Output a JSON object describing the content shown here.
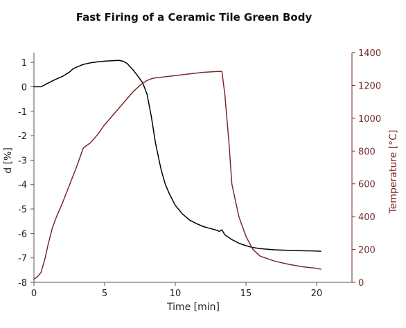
{
  "chart_data": {
    "type": "line",
    "title": "Fast Firing of a Ceramic Tile Green Body",
    "xlabel": "Time [min]",
    "ylabel_left": "d [%]",
    "ylabel_right": "Temperature [°C]",
    "xlim": [
      0,
      22.5
    ],
    "ylim_left": [
      -8,
      1.4
    ],
    "ylim_right": [
      0,
      1400
    ],
    "x_ticks": [
      "0",
      "5",
      "10",
      "15",
      "20"
    ],
    "y_left_ticks": [
      "1",
      "0",
      "-1",
      "-2",
      "-3",
      "-4",
      "-5",
      "-6",
      "-7",
      "-8"
    ],
    "y_right_ticks": [
      "1400",
      "1200",
      "1000",
      "800",
      "600",
      "400",
      "200",
      "0"
    ],
    "grid": false,
    "colors": {
      "left": "#000000",
      "right": "#7a2a2a"
    },
    "series": [
      {
        "axis": "left",
        "x": [
          0,
          0.5,
          1,
          1.5,
          2,
          2.5,
          2.8,
          3.2,
          3.5,
          4,
          4.5,
          5,
          5.5,
          6,
          6.3,
          6.6,
          7,
          7.4,
          7.7,
          8,
          8.3,
          8.6,
          9,
          9.3,
          9.6,
          10,
          10.5,
          11,
          11.5,
          12,
          12.5,
          13,
          13.1,
          13.3,
          13.5,
          14,
          14.5,
          15,
          15.5,
          16,
          17,
          18,
          19,
          20,
          20.3
        ],
        "values": [
          0,
          0,
          0.15,
          0.3,
          0.42,
          0.6,
          0.75,
          0.85,
          0.92,
          0.98,
          1.02,
          1.05,
          1.07,
          1.08,
          1.05,
          0.95,
          0.7,
          0.4,
          0.15,
          -0.3,
          -1.2,
          -2.3,
          -3.4,
          -4.0,
          -4.4,
          -4.85,
          -5.2,
          -5.45,
          -5.6,
          -5.72,
          -5.8,
          -5.88,
          -5.92,
          -5.85,
          -6.05,
          -6.25,
          -6.4,
          -6.5,
          -6.58,
          -6.62,
          -6.67,
          -6.69,
          -6.71,
          -6.72,
          -6.73
        ]
      },
      {
        "axis": "right",
        "x": [
          0,
          0.2,
          0.5,
          0.8,
          1,
          1.3,
          1.6,
          2,
          2.5,
          3,
          3.5,
          4,
          4.5,
          5,
          5.5,
          6,
          6.5,
          7,
          7.5,
          8,
          8.3,
          8.5,
          9,
          10,
          11,
          12,
          13,
          13.3,
          13.5,
          13.8,
          14,
          14.5,
          15,
          15.5,
          16,
          17,
          18,
          19,
          20,
          20.3
        ],
        "values": [
          20,
          30,
          60,
          150,
          230,
          330,
          400,
          480,
          590,
          700,
          820,
          850,
          900,
          960,
          1010,
          1060,
          1110,
          1160,
          1200,
          1230,
          1240,
          1245,
          1250,
          1260,
          1270,
          1280,
          1285,
          1285,
          1150,
          850,
          600,
          400,
          280,
          200,
          160,
          130,
          110,
          95,
          85,
          80
        ]
      }
    ]
  }
}
